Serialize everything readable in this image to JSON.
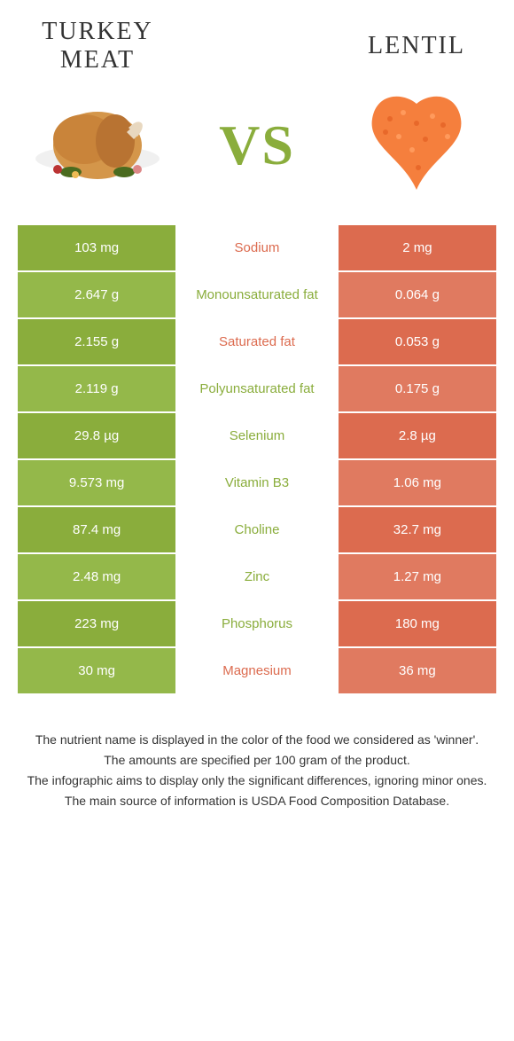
{
  "header": {
    "left_title": "Turkey meat",
    "right_title": "Lentil",
    "vs_text": "VS"
  },
  "colors": {
    "green": "#8aad3c",
    "green_alt": "#94b84a",
    "orange": "#dc6b4f",
    "orange_alt": "#e07a60",
    "background": "#ffffff"
  },
  "rows": [
    {
      "left": "103 mg",
      "label": "Sodium",
      "right": "2 mg",
      "winner": "orange"
    },
    {
      "left": "2.647 g",
      "label": "Monounsaturated fat",
      "right": "0.064 g",
      "winner": "green"
    },
    {
      "left": "2.155 g",
      "label": "Saturated fat",
      "right": "0.053 g",
      "winner": "orange"
    },
    {
      "left": "2.119 g",
      "label": "Polyunsaturated fat",
      "right": "0.175 g",
      "winner": "green"
    },
    {
      "left": "29.8 µg",
      "label": "Selenium",
      "right": "2.8 µg",
      "winner": "green"
    },
    {
      "left": "9.573 mg",
      "label": "Vitamin B3",
      "right": "1.06 mg",
      "winner": "green"
    },
    {
      "left": "87.4 mg",
      "label": "Choline",
      "right": "32.7 mg",
      "winner": "green"
    },
    {
      "left": "2.48 mg",
      "label": "Zinc",
      "right": "1.27 mg",
      "winner": "green"
    },
    {
      "left": "223 mg",
      "label": "Phosphorus",
      "right": "180 mg",
      "winner": "green"
    },
    {
      "left": "30 mg",
      "label": "Magnesium",
      "right": "36 mg",
      "winner": "orange"
    }
  ],
  "footnotes": [
    "The nutrient name is displayed in the color of the food we considered as 'winner'.",
    "The amounts are specified per 100 gram of the product.",
    "The infographic aims to display only the significant differences, ignoring minor ones.",
    "The main source of information is USDA Food Composition Database."
  ]
}
